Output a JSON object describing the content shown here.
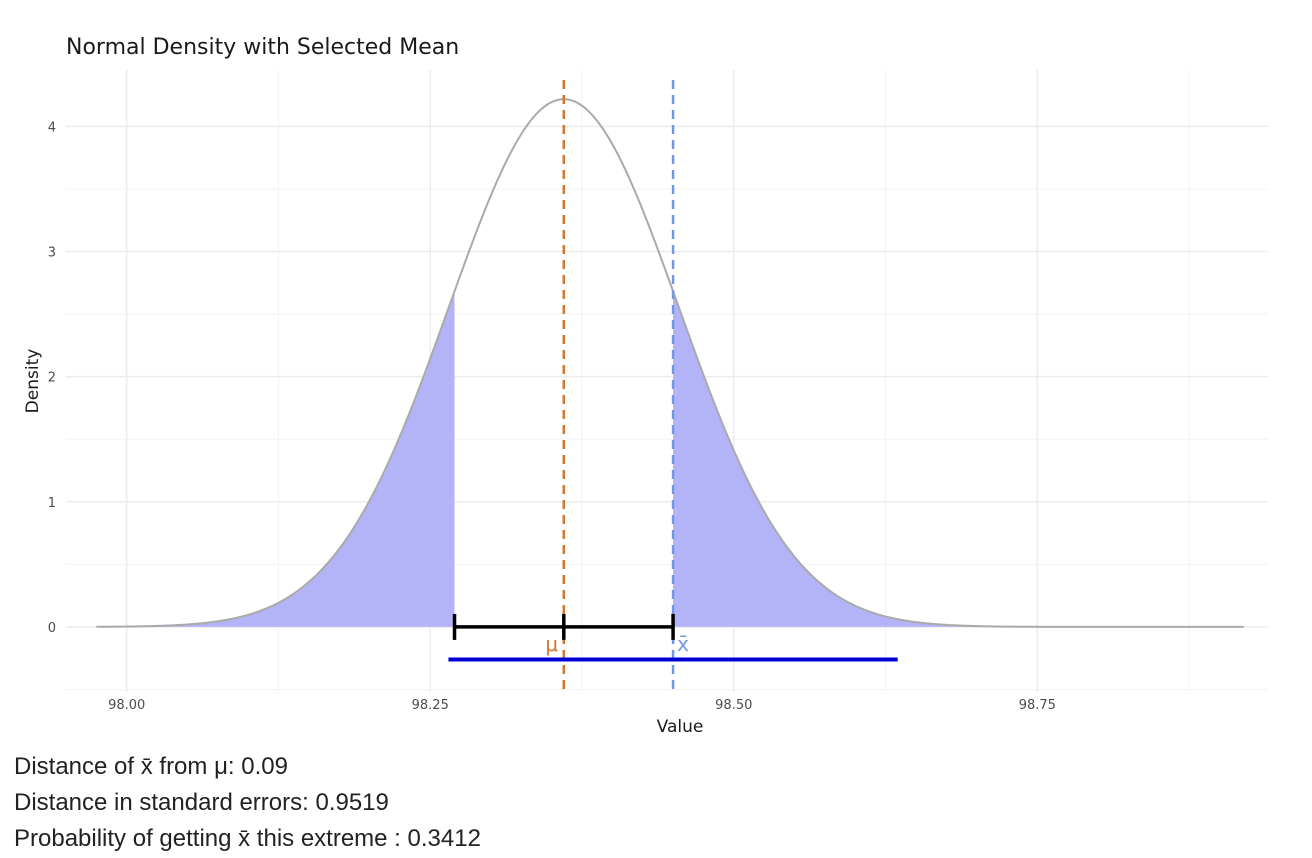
{
  "chart_data": {
    "type": "area",
    "title": "Normal Density with Selected Mean",
    "xlabel": "Value",
    "ylabel": "Density",
    "xlim": [
      97.95,
      98.94
    ],
    "ylim": [
      -0.52,
      4.45
    ],
    "x_ticks": [
      98.0,
      98.25,
      98.5,
      98.75
    ],
    "x_tick_labels": [
      "98.00",
      "98.25",
      "98.50",
      "98.75"
    ],
    "y_ticks": [
      0,
      1,
      2,
      3,
      4
    ],
    "y_tick_labels": [
      "0",
      "1",
      "2",
      "3",
      "4"
    ],
    "grid": true,
    "legend": "none",
    "distribution": {
      "mean": 98.36,
      "sd": 0.0946,
      "x_range": [
        97.975,
        98.92
      ]
    },
    "shaded_tails": {
      "lower_upto": 98.27,
      "upper_from": 98.45
    },
    "mu": {
      "value": 98.36,
      "label": "μ"
    },
    "xbar": {
      "value": 98.45,
      "label": "x̄"
    },
    "interval_bar": {
      "from": 98.27,
      "to": 98.45,
      "ticks": [
        98.27,
        98.36,
        98.45
      ],
      "y": 0
    },
    "blue_segment": {
      "from": 98.265,
      "to": 98.635,
      "y": -0.26
    },
    "colors": {
      "curve": "#aaaaaa",
      "shade": "#b3b3f8",
      "mu": "#d2772d",
      "xbar": "#7297e4",
      "interval": "#000000",
      "segment": "#0000d5",
      "grid": "#ececec"
    }
  },
  "stats": {
    "line1": "Distance of x̄ from μ: 0.09",
    "line2": "Distance in standard errors: 0.9519",
    "line3": "Probability of getting x̄ this extreme : 0.3412"
  }
}
